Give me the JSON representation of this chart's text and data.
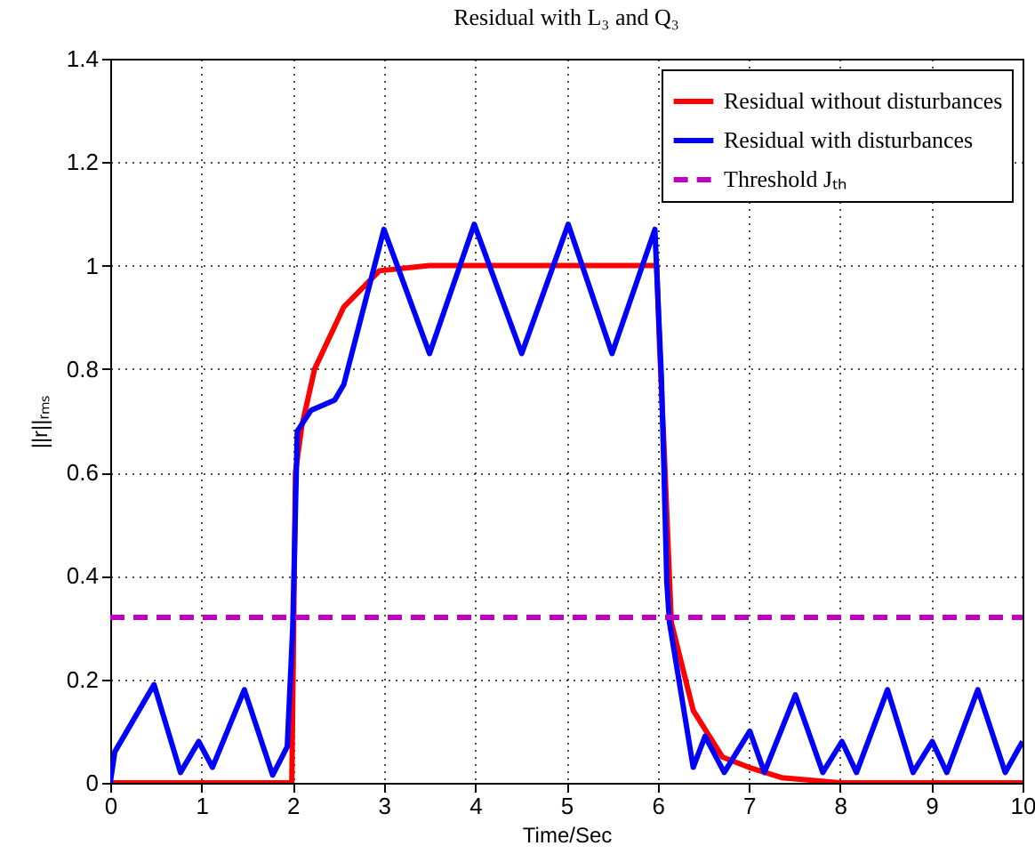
{
  "chart_data": {
    "type": "line",
    "title": "Residual with L₃ and Q₃",
    "xlabel": "Time/Sec",
    "ylabel": "||r||ᵣₘₛ",
    "xlim": [
      0,
      10
    ],
    "xticks": [
      0,
      1,
      2,
      3,
      4,
      5,
      6,
      7,
      8,
      9,
      10
    ],
    "ylim": [
      0,
      1.4
    ],
    "yticks": [
      0,
      0.2,
      0.4,
      0.6,
      0.8,
      1,
      1.2,
      1.4
    ],
    "grid": true,
    "legend": "top right",
    "series": [
      {
        "name": "Residual without disturbances",
        "color": "#ff0000",
        "line_style": "solid",
        "x": [
          0,
          1.99,
          2.03,
          2.1,
          2.24,
          2.56,
          2.95,
          3.5,
          5.99,
          6.02,
          6.07,
          6.15,
          6.39,
          6.71,
          7.0,
          7.36,
          8,
          10
        ],
        "values": [
          0,
          0,
          0.6,
          0.69,
          0.8,
          0.92,
          0.99,
          1.0,
          1.0,
          0.85,
          0.65,
          0.31,
          0.14,
          0.05,
          0.03,
          0.01,
          0,
          0
        ]
      },
      {
        "name": "Residual with disturbances",
        "color": "#0000ff",
        "line_style": "solid",
        "x": [
          0,
          0.05,
          0.48,
          0.77,
          0.97,
          1.12,
          1.47,
          1.78,
          1.94,
          2.0,
          2.05,
          2.2,
          2.46,
          2.56,
          3.0,
          3.5,
          3.99,
          4.51,
          5.02,
          5.5,
          5.97,
          6.04,
          6.07,
          6.1,
          6.13,
          6.39,
          6.52,
          6.73,
          7.01,
          7.17,
          7.51,
          7.81,
          8.02,
          8.18,
          8.52,
          8.8,
          9.01,
          9.17,
          9.51,
          9.81,
          10
        ],
        "values": [
          0,
          0.06,
          0.19,
          0.02,
          0.08,
          0.03,
          0.18,
          0.015,
          0.07,
          0.3,
          0.68,
          0.72,
          0.74,
          0.77,
          1.07,
          0.83,
          1.08,
          0.83,
          1.08,
          0.83,
          1.07,
          0.79,
          0.6,
          0.39,
          0.31,
          0.03,
          0.09,
          0.02,
          0.1,
          0.02,
          0.17,
          0.02,
          0.08,
          0.02,
          0.18,
          0.02,
          0.08,
          0.02,
          0.18,
          0.02,
          0.08
        ]
      },
      {
        "name": "Threshold Jₜₕ",
        "color": "#bf00bf",
        "line_style": "dashed",
        "x": [
          0,
          10
        ],
        "values": [
          0.32,
          0.32
        ]
      }
    ]
  }
}
